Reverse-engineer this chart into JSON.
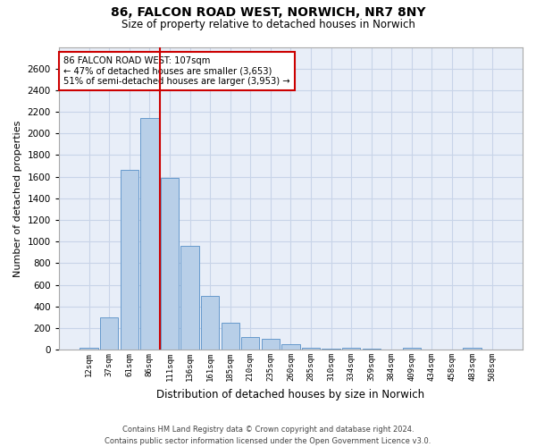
{
  "title_line1": "86, FALCON ROAD WEST, NORWICH, NR7 8NY",
  "title_line2": "Size of property relative to detached houses in Norwich",
  "xlabel": "Distribution of detached houses by size in Norwich",
  "ylabel": "Number of detached properties",
  "bar_color": "#b8cfe8",
  "bar_edge_color": "#6699cc",
  "categories": [
    "12sqm",
    "37sqm",
    "61sqm",
    "86sqm",
    "111sqm",
    "136sqm",
    "161sqm",
    "185sqm",
    "210sqm",
    "235sqm",
    "260sqm",
    "285sqm",
    "310sqm",
    "334sqm",
    "359sqm",
    "384sqm",
    "409sqm",
    "434sqm",
    "458sqm",
    "483sqm",
    "508sqm"
  ],
  "values": [
    20,
    300,
    1660,
    2140,
    1590,
    960,
    500,
    248,
    120,
    100,
    48,
    15,
    10,
    20,
    8,
    5,
    18,
    3,
    3,
    20,
    3
  ],
  "ylim": [
    0,
    2800
  ],
  "yticks": [
    0,
    200,
    400,
    600,
    800,
    1000,
    1200,
    1400,
    1600,
    1800,
    2000,
    2200,
    2400,
    2600
  ],
  "annotation_title": "86 FALCON ROAD WEST: 107sqm",
  "annotation_line2": "← 47% of detached houses are smaller (3,653)",
  "annotation_line3": "51% of semi-detached houses are larger (3,953) →",
  "red_line_color": "#cc0000",
  "annotation_box_color": "#ffffff",
  "annotation_box_edge": "#cc0000",
  "footer_line1": "Contains HM Land Registry data © Crown copyright and database right 2024.",
  "footer_line2": "Contains public sector information licensed under the Open Government Licence v3.0.",
  "grid_color": "#c8d4e8",
  "background_color": "#e8eef8"
}
